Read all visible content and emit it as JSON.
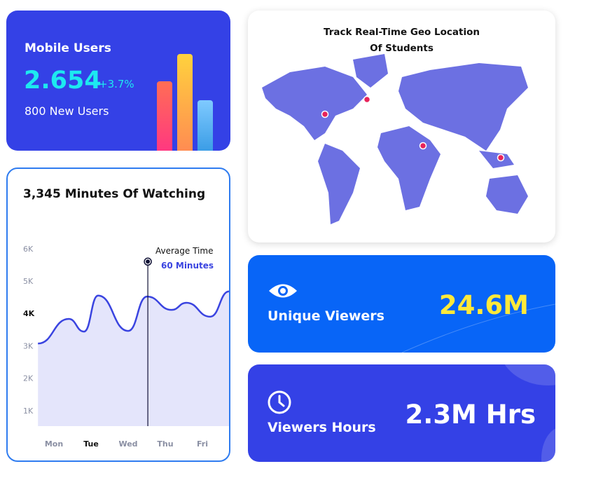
{
  "mobile_users": {
    "title": "Mobile Users",
    "value": "2.654",
    "change": "+3.7%",
    "new_users": "800 New Users"
  },
  "watching": {
    "title": "3,345 Minutes Of Watching",
    "annotation_label": "Average Time",
    "annotation_value": "60 Minutes"
  },
  "chart_data": {
    "type": "area",
    "xlabel": "",
    "ylabel": "",
    "categories": [
      "Mon",
      "Tue",
      "Wed",
      "Thu",
      "Fri"
    ],
    "y_ticks": [
      "1K",
      "2K",
      "3K",
      "4K",
      "5K",
      "6K"
    ],
    "ylim": [
      0.5,
      6.3
    ],
    "x": [
      -0.43,
      0.4,
      0.81,
      1.19,
      2.0,
      2.51,
      3.17,
      3.57,
      4.21,
      4.72
    ],
    "values": [
      3.07,
      3.83,
      3.44,
      4.55,
      3.46,
      4.52,
      4.11,
      4.33,
      3.9,
      4.68
    ],
    "annotation_x": 2.53,
    "annotation_y": 5.6,
    "line_color": "#3a44e0",
    "fill_color": "#e4e5fb",
    "grid": false
  },
  "map": {
    "title_line1": "Track Real-Time Geo Location",
    "title_line2": "Of Students",
    "land_color": "#6c70e2",
    "marker_color": "#e8245a"
  },
  "unique_viewers": {
    "label": "Unique Viewers",
    "value": "24.6M",
    "icon": "eye-icon",
    "value_color": "#ffe93a"
  },
  "viewers_hours": {
    "label": "Viewers Hours",
    "value": "2.3M Hrs",
    "icon": "clock-icon"
  }
}
